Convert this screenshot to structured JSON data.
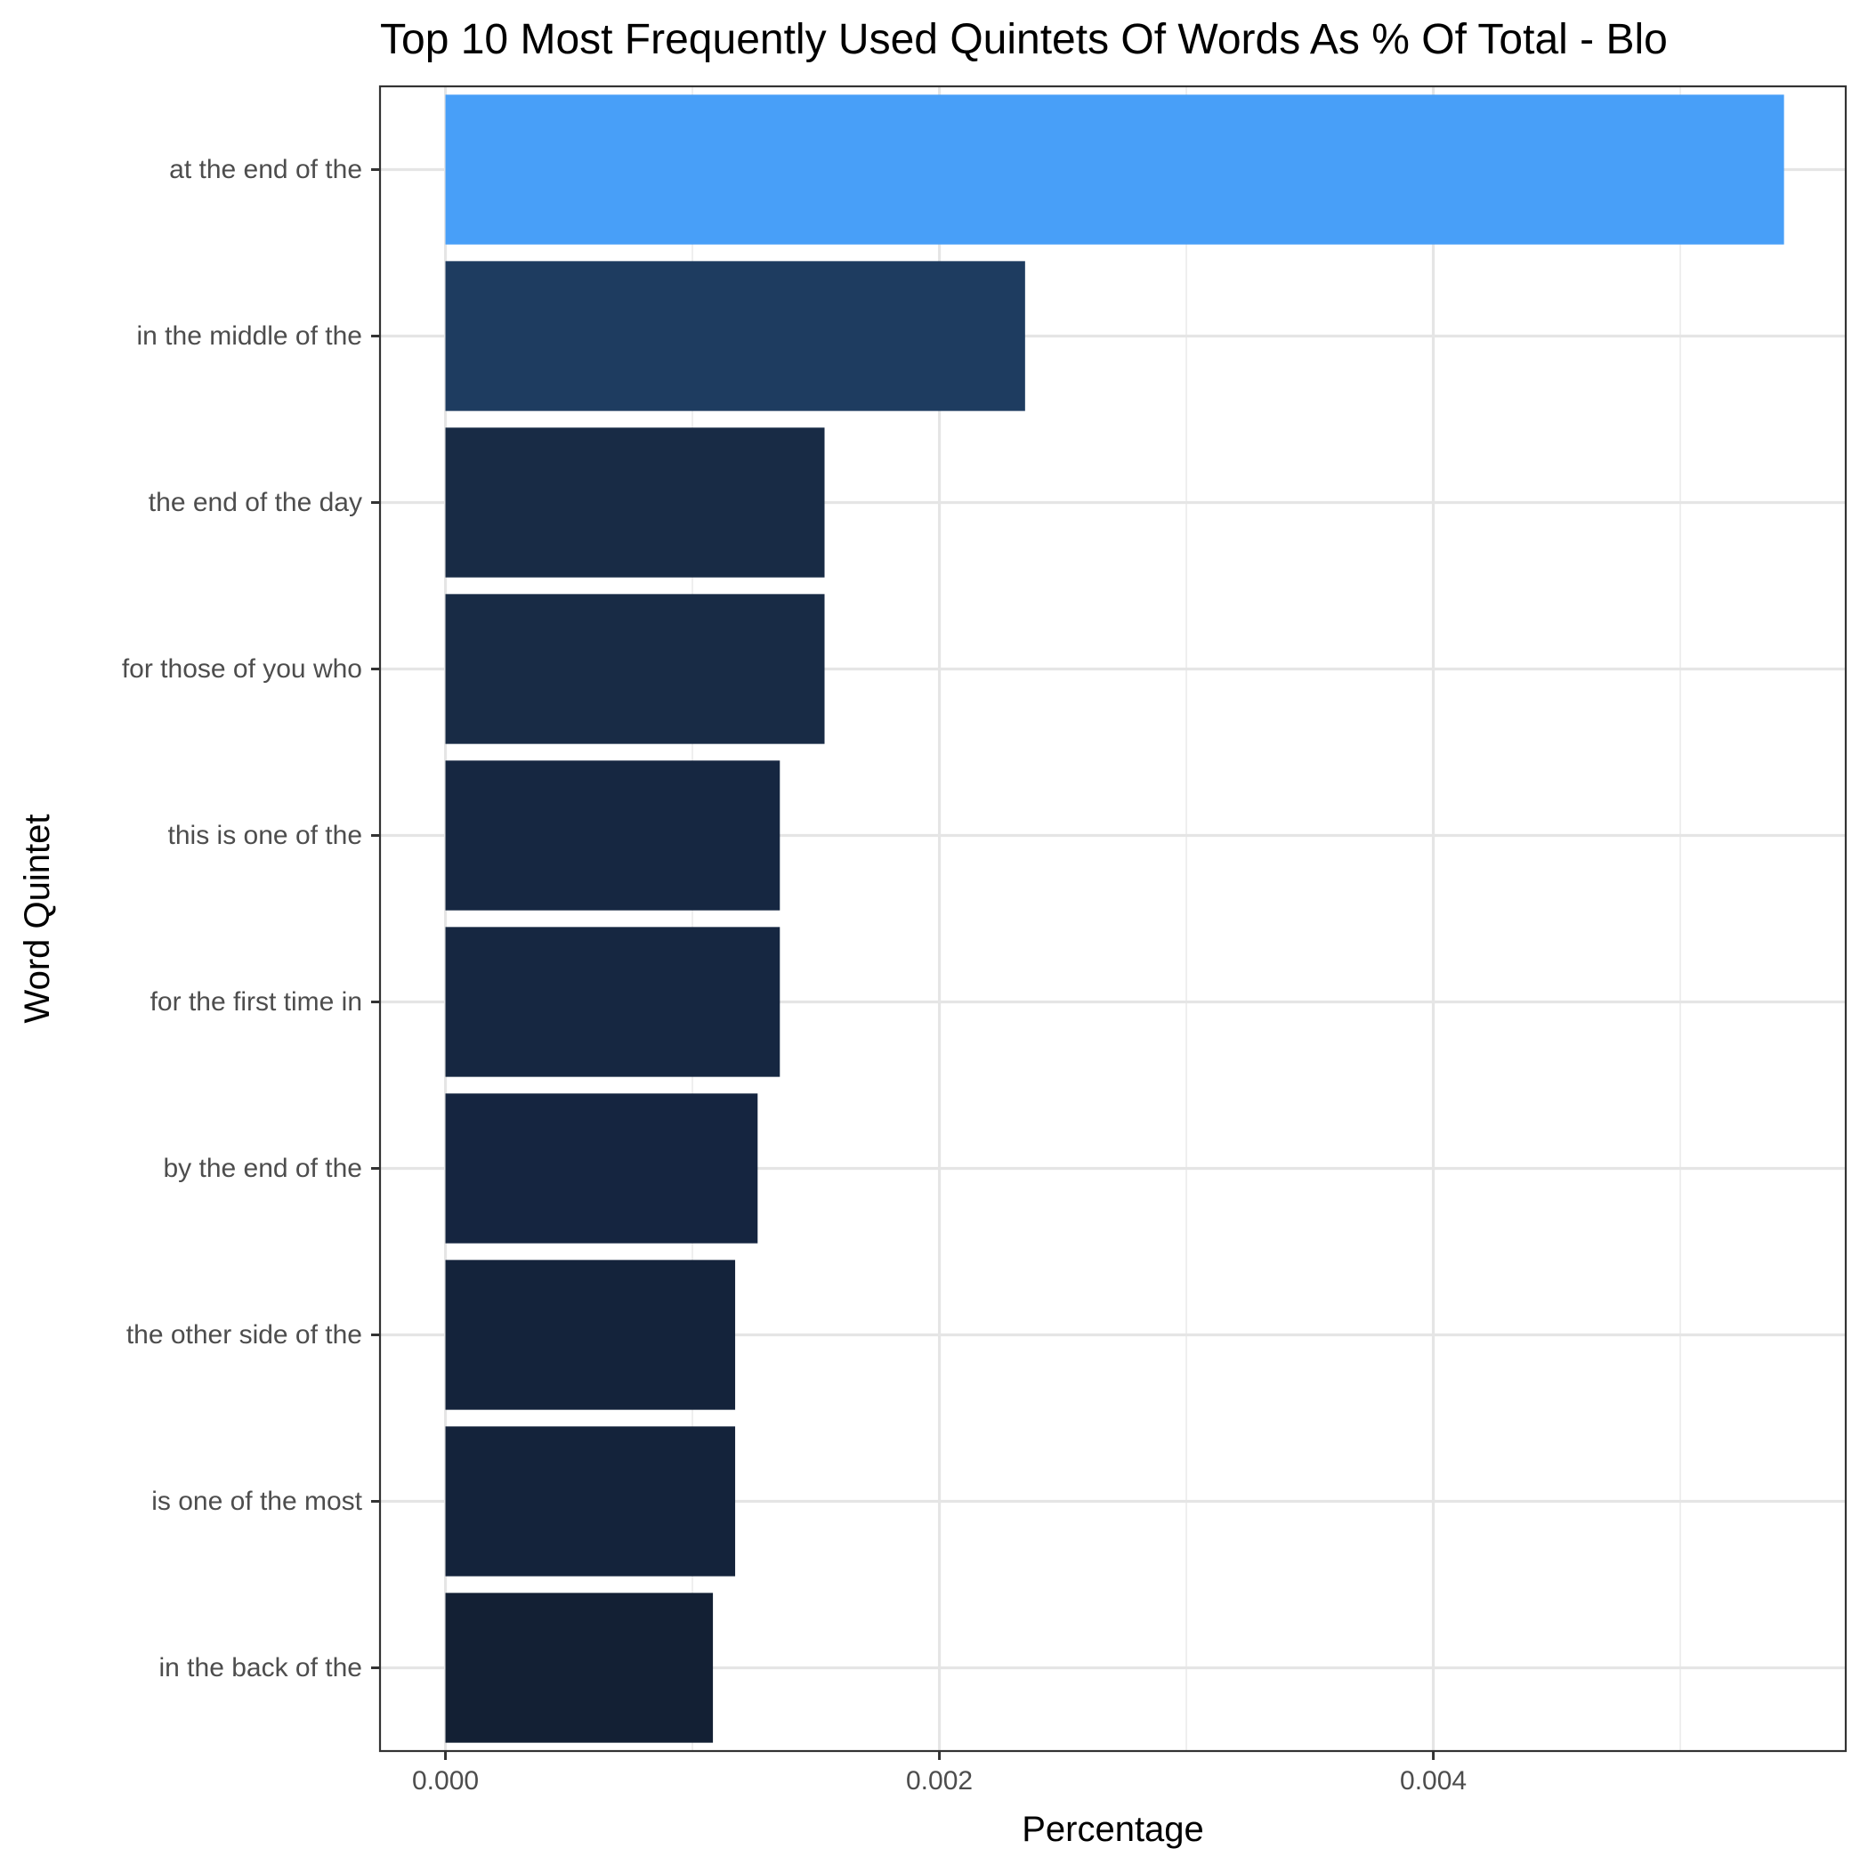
{
  "chart_data": {
    "type": "bar",
    "orientation": "horizontal",
    "title": "Top 10 Most Frequently Used Quintets Of Words As % Of Total - Blo",
    "xlabel": "Percentage",
    "ylabel": "Word Quintet",
    "xlim": [
      -0.000265,
      0.00567
    ],
    "xticks": [
      0.0,
      0.002,
      0.004
    ],
    "xtick_labels": [
      "0.000",
      "0.002",
      "0.004"
    ],
    "grid": true,
    "legend": "none",
    "categories": [
      "at the end of the",
      "in the middle of the",
      "the end of the day",
      "for those of you who",
      "this is one of the",
      "for the first time in",
      "by the end of the",
      "the other side of the",
      "is one of the most",
      "in the back of the"
    ],
    "values": [
      0.00542,
      0.002347,
      0.001535,
      0.001535,
      0.001354,
      0.001354,
      0.001264,
      0.001173,
      0.001173,
      0.001083
    ],
    "colors": [
      "#489FF8",
      "#1E3C60",
      "#182B45",
      "#182B45",
      "#162741",
      "#162741",
      "#152540",
      "#14233B",
      "#14233B",
      "#132034"
    ]
  }
}
